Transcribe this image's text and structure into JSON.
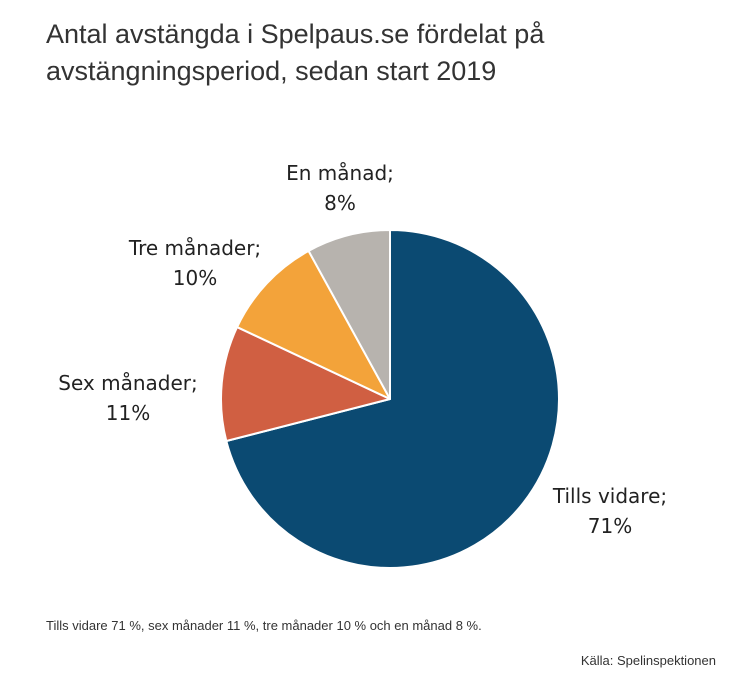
{
  "title_lines": [
    "Antal avstängda i Spelpaus.se fördelat på",
    "avstängningsperiod, sedan start 2019"
  ],
  "caption": "Tills vidare 71 %, sex månader 11 %, tre månader 10 % och en månad 8 %.",
  "source": "Källa: Spelinspektionen",
  "chart_data": {
    "type": "pie",
    "title": "Antal avstängda i Spelpaus.se fördelat på avstängningsperiod, sedan start 2019",
    "start": "12 o'clock",
    "direction": "clockwise",
    "slices": [
      {
        "label": "Tills vidare;",
        "pct_label": "71%",
        "value": 71,
        "color": "#0b4a72"
      },
      {
        "label": "Sex månader;",
        "pct_label": "11%",
        "value": 11,
        "color": "#d05f42"
      },
      {
        "label": "Tre månader;",
        "pct_label": "10%",
        "value": 10,
        "color": "#f3a33a"
      },
      {
        "label": "En månad;",
        "pct_label": "8%",
        "value": 8,
        "color": "#b7b3ae"
      }
    ]
  }
}
